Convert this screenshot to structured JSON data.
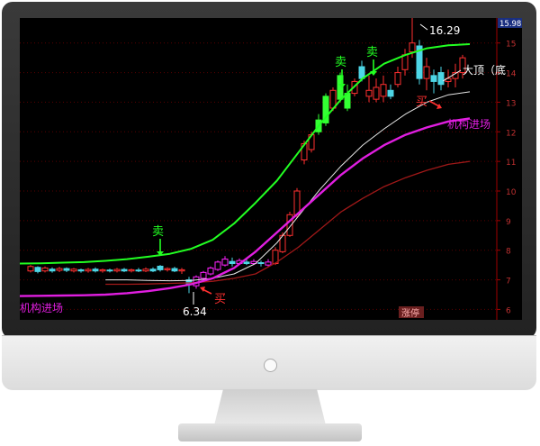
{
  "chart_data": {
    "type": "candlestick",
    "y_ticks": [
      "15",
      "14",
      "13",
      "12",
      "11",
      "10",
      "9",
      "8",
      "7",
      "6"
    ],
    "ylim": [
      5.8,
      15.6
    ],
    "last_price": "15.98",
    "high_label": "16.29",
    "low_label": "6.34",
    "buy_label": "买",
    "sell_label": "卖",
    "top_bottom_label": "大顶（底",
    "institution_label": "机构进场",
    "zhangting_label": "涨停",
    "series": {
      "upper_band_green": [
        7.55,
        7.56,
        7.58,
        7.6,
        7.64,
        7.7,
        7.78,
        7.88,
        8.05,
        8.35,
        8.9,
        9.6,
        10.35,
        11.3,
        12.25,
        13.1,
        13.8,
        14.3,
        14.6,
        14.82,
        14.92,
        14.96
      ],
      "magenta_line": [
        6.45,
        6.46,
        6.47,
        6.48,
        6.5,
        6.55,
        6.62,
        6.72,
        6.85,
        7.05,
        7.4,
        7.95,
        8.6,
        9.25,
        9.9,
        10.55,
        11.1,
        11.55,
        11.9,
        12.15,
        12.35,
        12.45
      ],
      "white_line": [
        null,
        null,
        null,
        null,
        7.0,
        7.0,
        6.98,
        6.97,
        6.98,
        7.05,
        7.2,
        7.55,
        8.25,
        9.15,
        10.05,
        10.85,
        11.55,
        12.1,
        12.6,
        13.0,
        13.25,
        13.35
      ],
      "darkred_line": [
        null,
        null,
        null,
        null,
        6.85,
        6.85,
        6.86,
        6.88,
        6.9,
        6.95,
        7.05,
        7.2,
        7.6,
        8.1,
        8.7,
        9.3,
        9.75,
        10.15,
        10.45,
        10.7,
        10.9,
        11.0
      ]
    }
  }
}
